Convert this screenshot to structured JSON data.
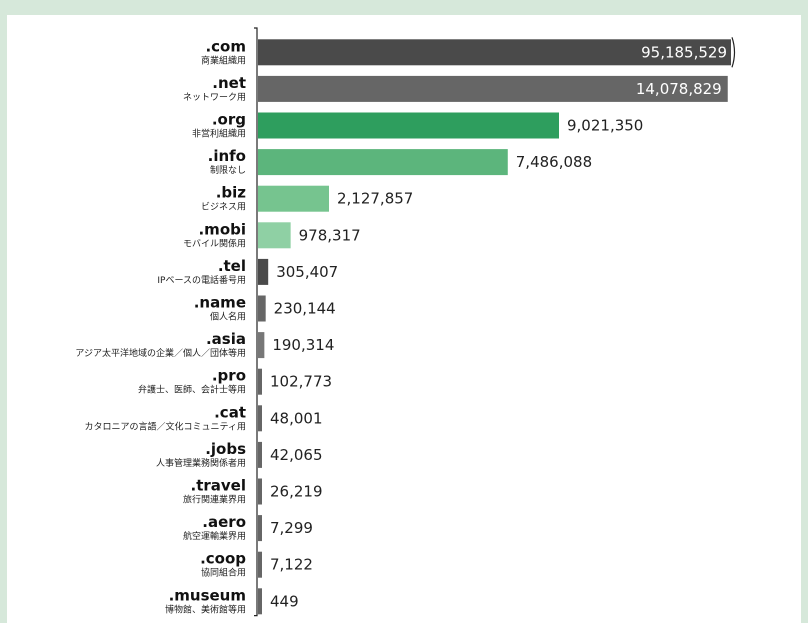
{
  "chart_data": {
    "type": "bar",
    "orientation": "horizontal",
    "axis_break_on": ".com",
    "categories": [
      ".com",
      ".net",
      ".org",
      ".info",
      ".biz",
      ".mobi",
      ".tel",
      ".name",
      ".asia",
      ".pro",
      ".cat",
      ".jobs",
      ".travel",
      ".aero",
      ".coop",
      ".museum"
    ],
    "descriptions": [
      "商業組織用",
      "ネットワーク用",
      "非営利組織用",
      "制限なし",
      "ビジネス用",
      "モバイル関係用",
      "IPベースの電話番号用",
      "個人名用",
      "アジア太平洋地域の企業／個人／団体等用",
      "弁護士、医師、会計士等用",
      "カタロニアの言語／文化コミュニティ用",
      "人事管理業務関係者用",
      "旅行関連業界用",
      "航空運輸業界用",
      "協同組合用",
      "博物館、美術館等用"
    ],
    "values": [
      95185529,
      14078829,
      9021350,
      7486088,
      2127857,
      978317,
      305407,
      230144,
      190314,
      102773,
      48001,
      42065,
      26219,
      7299,
      7122,
      449
    ],
    "value_labels": [
      "95,185,529",
      "14,078,829",
      "9,021,350",
      "7,486,088",
      "2,127,857",
      "978,317",
      "305,407",
      "230,144",
      "190,314",
      "102,773",
      "48,001",
      "42,065",
      "26,219",
      "7,299",
      "7,122",
      "449"
    ],
    "colors": [
      "#4a4a4a",
      "#666666",
      "#2e9e5e",
      "#5cb57c",
      "#76c48f",
      "#8fd0a4",
      "#4a4a4a",
      "#666666",
      "#777777",
      "#666666",
      "#666666",
      "#666666",
      "#666666",
      "#666666",
      "#666666",
      "#666666"
    ],
    "labels_inside": [
      true,
      true,
      false,
      false,
      false,
      false,
      false,
      false,
      false,
      false,
      false,
      false,
      false,
      false,
      false,
      false
    ]
  }
}
